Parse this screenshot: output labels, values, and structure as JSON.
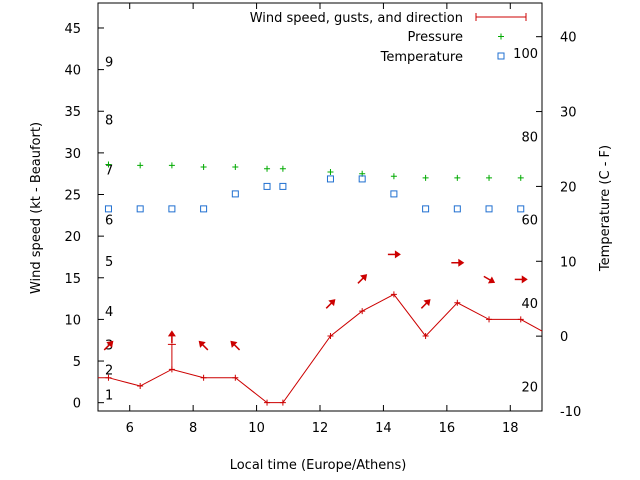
{
  "chart_data": {
    "type": "line",
    "xlabel": "Local time (Europe/Athens)",
    "ylabel": "Wind speed (kt - Beaufort)",
    "y2label": "Temperature (C - F)",
    "xlim": [
      5.0,
      19.0
    ],
    "ylim": [
      -1.0,
      48.0
    ],
    "y2lim": [
      -10.0,
      44.5
    ],
    "x_ticks": [
      6,
      8,
      10,
      12,
      14,
      16,
      18
    ],
    "y_ticks": [
      0,
      5,
      10,
      15,
      20,
      25,
      30,
      35,
      40,
      45
    ],
    "y2_ticks": [
      -10,
      0,
      10,
      20,
      30,
      40
    ],
    "beaufort_labels": [
      {
        "label": "1",
        "kt": 1
      },
      {
        "label": "2",
        "kt": 4
      },
      {
        "label": "3",
        "kt": 7
      },
      {
        "label": "4",
        "kt": 11
      },
      {
        "label": "5",
        "kt": 17
      },
      {
        "label": "6",
        "kt": 22
      },
      {
        "label": "7",
        "kt": 28
      },
      {
        "label": "8",
        "kt": 34
      },
      {
        "label": "9",
        "kt": 41
      }
    ],
    "fahrenheit_labels": [
      {
        "label": "20",
        "celsius": -6.7
      },
      {
        "label": "40",
        "celsius": 4.4
      },
      {
        "label": "60",
        "celsius": 15.6
      },
      {
        "label": "80",
        "celsius": 26.7
      },
      {
        "label": "100",
        "celsius": 37.8
      }
    ],
    "legend_position": "top-right",
    "grid": false,
    "series": [
      {
        "name": "Wind speed, gusts, and direction",
        "color": "#cc0000",
        "x": [
          5.0,
          5.33,
          6.33,
          7.33,
          8.33,
          9.33,
          10.33,
          10.83,
          12.33,
          13.33,
          14.33,
          15.33,
          16.33,
          17.33,
          18.33,
          19.0
        ],
        "values": [
          3,
          3,
          2,
          4,
          3,
          3,
          0,
          0,
          8,
          11,
          13,
          8,
          12,
          10,
          10,
          8.6
        ],
        "gusts": [
          null,
          null,
          null,
          7,
          null,
          null,
          null,
          null,
          null,
          null,
          null,
          null,
          null,
          null,
          null,
          null
        ],
        "arrows": [
          {
            "x": 5.33,
            "dir": "up-right"
          },
          {
            "x": 7.33,
            "dir": "up"
          },
          {
            "x": 8.33,
            "dir": "up-left"
          },
          {
            "x": 9.33,
            "dir": "up-left"
          },
          {
            "x": 12.33,
            "dir": "up-right"
          },
          {
            "x": 13.33,
            "dir": "up-right"
          },
          {
            "x": 14.33,
            "dir": "right"
          },
          {
            "x": 15.33,
            "dir": "up-right"
          },
          {
            "x": 16.33,
            "dir": "right"
          },
          {
            "x": 17.33,
            "dir": "down-right"
          },
          {
            "x": 18.33,
            "dir": "right"
          }
        ]
      },
      {
        "name": "Pressure",
        "color": "#00aa00",
        "x": [
          5.33,
          6.33,
          7.33,
          8.33,
          9.33,
          10.33,
          10.83,
          12.33,
          13.33,
          14.33,
          15.33,
          16.33,
          17.33,
          18.33
        ],
        "values": [
          28.6,
          28.5,
          28.5,
          28.3,
          28.3,
          28.1,
          28.1,
          27.7,
          27.5,
          27.2,
          27.0,
          27.0,
          27.0,
          27.0
        ]
      },
      {
        "name": "Temperature",
        "color": "#1f6fd0",
        "x": [
          5.33,
          6.33,
          7.33,
          8.33,
          9.33,
          10.33,
          10.83,
          12.33,
          13.33,
          14.33,
          15.33,
          16.33,
          17.33,
          18.33
        ],
        "values": [
          17,
          17,
          17,
          17,
          19,
          20,
          20,
          21,
          21,
          19,
          17,
          17,
          17,
          17
        ]
      }
    ]
  }
}
